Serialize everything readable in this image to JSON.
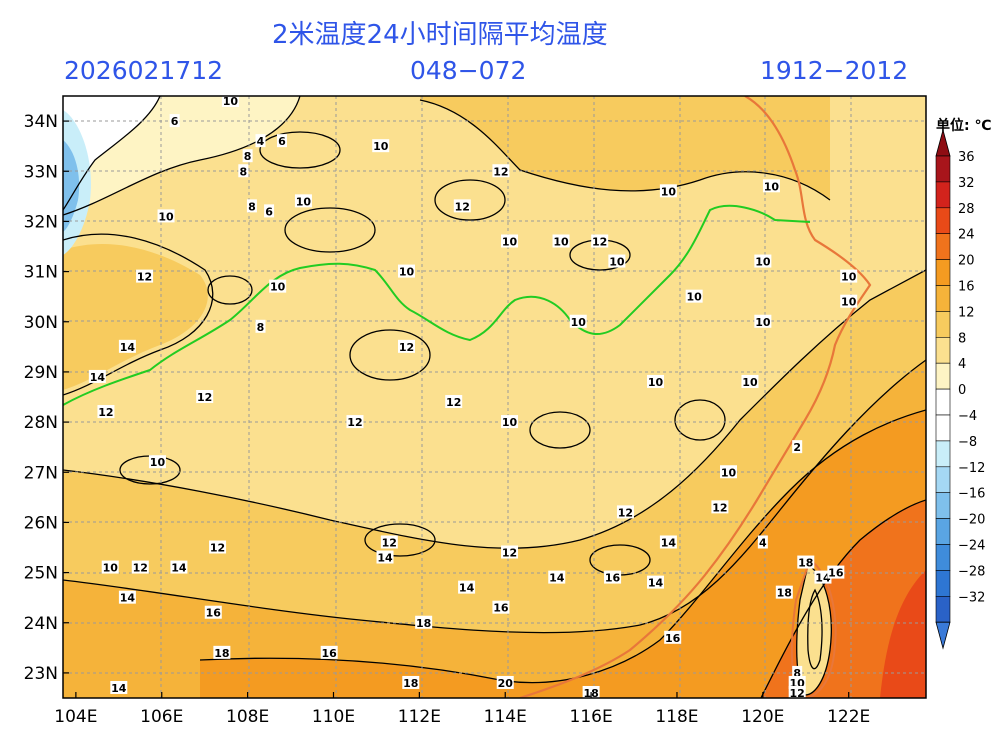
{
  "header": {
    "title": "2米温度24小时间隔平均温度",
    "date": "2026021712",
    "forecast_hours": "048−072",
    "period": "1912−2012"
  },
  "map": {
    "lon_labels": [
      "104E",
      "106E",
      "108E",
      "110E",
      "112E",
      "114E",
      "116E",
      "118E",
      "120E",
      "122E"
    ],
    "lat_labels": [
      "34N",
      "33N",
      "32N",
      "31N",
      "30N",
      "29N",
      "28N",
      "27N",
      "26N",
      "25N",
      "24N",
      "23N"
    ],
    "contour_labels": [
      {
        "text": "10",
        "lon": 107.6,
        "lat": 34.4
      },
      {
        "text": "6",
        "lon": 106.3,
        "lat": 34.0
      },
      {
        "text": "4",
        "lon": 108.3,
        "lat": 33.6
      },
      {
        "text": "6",
        "lon": 108.8,
        "lat": 33.6
      },
      {
        "text": "8",
        "lon": 108.0,
        "lat": 33.3
      },
      {
        "text": "8",
        "lon": 107.9,
        "lat": 33.0
      },
      {
        "text": "10",
        "lon": 111.1,
        "lat": 33.5
      },
      {
        "text": "12",
        "lon": 113.9,
        "lat": 33.0
      },
      {
        "text": "8",
        "lon": 108.1,
        "lat": 32.3
      },
      {
        "text": "6",
        "lon": 108.5,
        "lat": 32.2
      },
      {
        "text": "10",
        "lon": 109.3,
        "lat": 32.4
      },
      {
        "text": "10",
        "lon": 106.1,
        "lat": 32.1
      },
      {
        "text": "12",
        "lon": 113.0,
        "lat": 32.3
      },
      {
        "text": "10",
        "lon": 114.1,
        "lat": 31.6
      },
      {
        "text": "10",
        "lon": 115.3,
        "lat": 31.6
      },
      {
        "text": "12",
        "lon": 116.2,
        "lat": 31.6
      },
      {
        "text": "10",
        "lon": 117.8,
        "lat": 32.6
      },
      {
        "text": "10",
        "lon": 120.2,
        "lat": 32.7
      },
      {
        "text": "10",
        "lon": 116.6,
        "lat": 31.2
      },
      {
        "text": "10",
        "lon": 111.7,
        "lat": 31.0
      },
      {
        "text": "12",
        "lon": 105.6,
        "lat": 30.9
      },
      {
        "text": "10",
        "lon": 108.7,
        "lat": 30.7
      },
      {
        "text": "10",
        "lon": 120.0,
        "lat": 31.2
      },
      {
        "text": "10",
        "lon": 122.0,
        "lat": 30.9
      },
      {
        "text": "10",
        "lon": 118.4,
        "lat": 30.5
      },
      {
        "text": "10",
        "lon": 122.0,
        "lat": 30.4
      },
      {
        "text": "8",
        "lon": 108.3,
        "lat": 29.9
      },
      {
        "text": "10",
        "lon": 115.7,
        "lat": 30.0
      },
      {
        "text": "10",
        "lon": 120.0,
        "lat": 30.0
      },
      {
        "text": "14",
        "lon": 105.2,
        "lat": 29.5
      },
      {
        "text": "12",
        "lon": 111.7,
        "lat": 29.5
      },
      {
        "text": "14",
        "lon": 104.5,
        "lat": 28.9
      },
      {
        "text": "12",
        "lon": 107.0,
        "lat": 28.5
      },
      {
        "text": "12",
        "lon": 112.8,
        "lat": 28.4
      },
      {
        "text": "10",
        "lon": 117.5,
        "lat": 28.8
      },
      {
        "text": "10",
        "lon": 119.7,
        "lat": 28.8
      },
      {
        "text": "12",
        "lon": 104.7,
        "lat": 28.2
      },
      {
        "text": "12",
        "lon": 110.5,
        "lat": 28.0
      },
      {
        "text": "10",
        "lon": 114.1,
        "lat": 28.0
      },
      {
        "text": "10",
        "lon": 105.9,
        "lat": 27.2
      },
      {
        "text": "2",
        "lon": 120.8,
        "lat": 27.5
      },
      {
        "text": "10",
        "lon": 119.2,
        "lat": 27.0
      },
      {
        "text": "12",
        "lon": 119.0,
        "lat": 26.3
      },
      {
        "text": "12",
        "lon": 116.8,
        "lat": 26.2
      },
      {
        "text": "12",
        "lon": 107.3,
        "lat": 25.5
      },
      {
        "text": "12",
        "lon": 111.3,
        "lat": 25.6
      },
      {
        "text": "14",
        "lon": 111.2,
        "lat": 25.3
      },
      {
        "text": "12",
        "lon": 114.1,
        "lat": 25.4
      },
      {
        "text": "14",
        "lon": 117.8,
        "lat": 25.6
      },
      {
        "text": "4",
        "lon": 120.0,
        "lat": 25.6
      },
      {
        "text": "10",
        "lon": 104.8,
        "lat": 25.1
      },
      {
        "text": "12",
        "lon": 105.5,
        "lat": 25.1
      },
      {
        "text": "14",
        "lon": 106.4,
        "lat": 25.1
      },
      {
        "text": "14",
        "lon": 115.2,
        "lat": 24.9
      },
      {
        "text": "16",
        "lon": 116.5,
        "lat": 24.9
      },
      {
        "text": "14",
        "lon": 117.5,
        "lat": 24.8
      },
      {
        "text": "18",
        "lon": 121.0,
        "lat": 25.2
      },
      {
        "text": "14",
        "lon": 121.4,
        "lat": 24.9
      },
      {
        "text": "16",
        "lon": 121.7,
        "lat": 25.0
      },
      {
        "text": "14",
        "lon": 105.2,
        "lat": 24.5
      },
      {
        "text": "14",
        "lon": 113.1,
        "lat": 24.7
      },
      {
        "text": "18",
        "lon": 120.5,
        "lat": 24.6
      },
      {
        "text": "16",
        "lon": 107.2,
        "lat": 24.2
      },
      {
        "text": "16",
        "lon": 113.9,
        "lat": 24.3
      },
      {
        "text": "18",
        "lon": 112.1,
        "lat": 24.0
      },
      {
        "text": "16",
        "lon": 117.9,
        "lat": 23.7
      },
      {
        "text": "18",
        "lon": 107.4,
        "lat": 23.4
      },
      {
        "text": "16",
        "lon": 109.9,
        "lat": 23.4
      },
      {
        "text": "18",
        "lon": 111.8,
        "lat": 22.8
      },
      {
        "text": "20",
        "lon": 114.0,
        "lat": 22.8
      },
      {
        "text": "14",
        "lon": 105.0,
        "lat": 22.7
      },
      {
        "text": "18",
        "lon": 116.0,
        "lat": 22.6
      },
      {
        "text": "8",
        "lon": 120.8,
        "lat": 23.0
      },
      {
        "text": "10",
        "lon": 120.8,
        "lat": 22.8
      },
      {
        "text": "12",
        "lon": 120.8,
        "lat": 22.6
      }
    ]
  },
  "colorbar": {
    "unit_label": "单位: ℃",
    "levels": [
      {
        "label": "36",
        "color": "#a8151b"
      },
      {
        "label": "32",
        "color": "#d2231c"
      },
      {
        "label": "28",
        "color": "#e94a18"
      },
      {
        "label": "24",
        "color": "#f0731c"
      },
      {
        "label": "20",
        "color": "#f49b21"
      },
      {
        "label": "16",
        "color": "#f5b33a"
      },
      {
        "label": "12",
        "color": "#f7cb5e"
      },
      {
        "label": "8",
        "color": "#fbe08f"
      },
      {
        "label": "4",
        "color": "#fef4c4"
      },
      {
        "label": "0",
        "color": "#ffffff"
      },
      {
        "label": "−4",
        "color": "#ffffff"
      },
      {
        "label": "−8",
        "color": "#c9eef9"
      },
      {
        "label": "−12",
        "color": "#a5d8f4"
      },
      {
        "label": "−16",
        "color": "#7fc0ec"
      },
      {
        "label": "−20",
        "color": "#5aa5e3"
      },
      {
        "label": "−24",
        "color": "#3f8cdb"
      },
      {
        "label": "−28",
        "color": "#2e76d3"
      },
      {
        "label": "−32",
        "color": "#2a62c7"
      }
    ],
    "top_arrow_color": "#8e0d13",
    "bottom_arrow_color": "#3a7ad8"
  }
}
